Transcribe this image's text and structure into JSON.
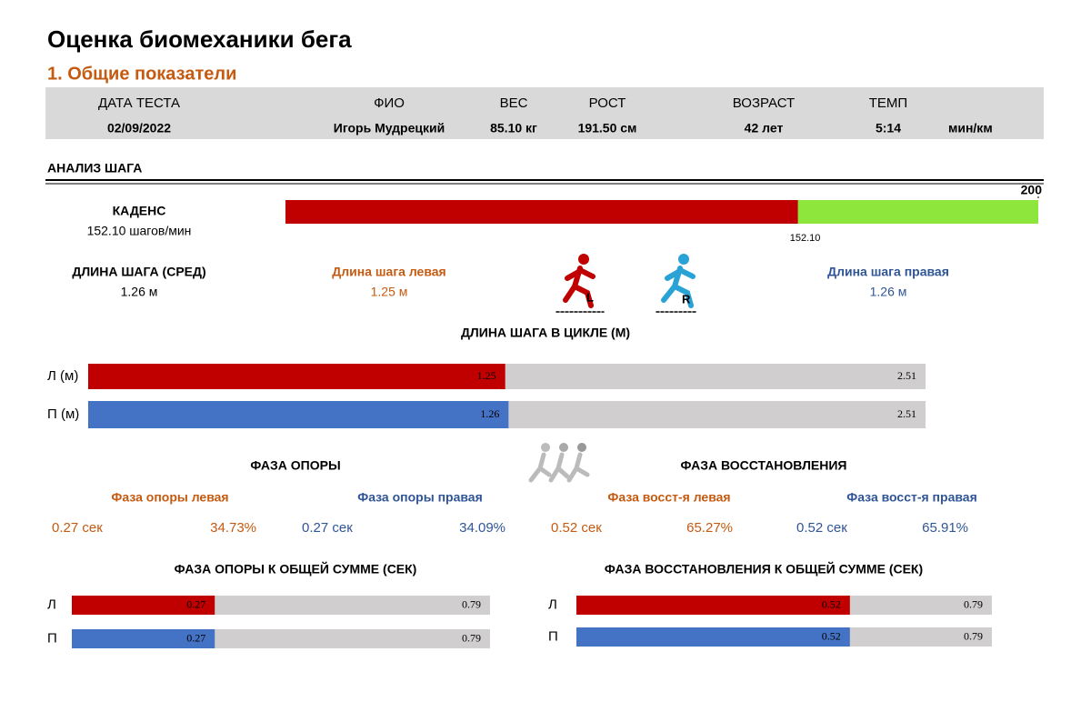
{
  "header": {
    "title": "Оценка биомеханики бега",
    "section": "1. Общие показатели"
  },
  "info": {
    "fields": [
      {
        "label": "ДАТА ТЕСТА",
        "value": "02/09/2022"
      },
      {
        "label": "ФИО",
        "value": "Игорь Мудрецкий"
      },
      {
        "label": "ВЕС",
        "value": "85.10 кг"
      },
      {
        "label": "РОСТ",
        "value": "191.50 см"
      },
      {
        "label": "ВОЗРАСТ",
        "value": "42 лет"
      },
      {
        "label": "ТЕМП",
        "value": "5:14"
      }
    ],
    "pace_unit": "мин/км"
  },
  "step_analysis": {
    "title": "АНАЛИЗ ШАГА",
    "cadence_label": "КАДЕНС",
    "cadence_text": "152.10 шагов/мин",
    "stride_avg_label": "ДЛИНА ШАГА (СРЕД)",
    "stride_avg_value": "1.26 м",
    "stride_left_label": "Длина шага левая",
    "stride_left_value": "1.25 м",
    "stride_right_label": "Длина шага правая",
    "stride_right_value": "1.26 м",
    "icons": {
      "left": "L",
      "right": "R"
    }
  },
  "phases": {
    "support": {
      "title": "ФАЗА ОПОРЫ",
      "left_label": "Фаза опоры левая",
      "left_time": "0.27 сек",
      "left_pct": "34.73%",
      "right_label": "Фаза опоры правая",
      "right_time": "0.27 сек",
      "right_pct": "34.09%"
    },
    "recovery": {
      "title": "ФАЗА ВОССТАНОВЛЕНИЯ",
      "left_label": "Фаза восст-я левая",
      "left_time": "0.52 сек",
      "left_pct": "65.27%",
      "right_label": "Фаза восст-я правая",
      "right_time": "0.52 сек",
      "right_pct": "65.91%"
    }
  },
  "chart_data": [
    {
      "type": "bar",
      "values": [
        152.1
      ],
      "value_labels": [
        "152.10"
      ],
      "xlim": [
        50,
        200
      ],
      "xticks": [
        200
      ],
      "color": "#c00000",
      "track_color": "#8ee63c"
    },
    {
      "type": "bar",
      "title": "ДЛИНА ШАГА В ЦИКЛЕ (М)",
      "categories": [
        "Л (м)",
        "П (м)"
      ],
      "values": [
        1.25,
        1.26
      ],
      "totals": [
        2.51,
        2.51
      ],
      "xlim": [
        0,
        2.51
      ],
      "colors": [
        "#c00000",
        "#4472c4"
      ],
      "total_color": "#d0cece"
    },
    {
      "type": "bar",
      "title": "ФАЗА ОПОРЫ К ОБЩЕЙ СУММЕ (СЕК)",
      "categories": [
        "Л",
        "П"
      ],
      "values": [
        0.27,
        0.27
      ],
      "totals": [
        0.79,
        0.79
      ],
      "xlim": [
        0,
        0.79
      ],
      "colors": [
        "#c00000",
        "#4472c4"
      ],
      "total_color": "#d0cece"
    },
    {
      "type": "bar",
      "title": "ФАЗА ВОССТАНОВЛЕНИЯ К ОБЩЕЙ СУММЕ (СЕК)",
      "categories": [
        "Л",
        "П"
      ],
      "values": [
        0.52,
        0.52
      ],
      "totals": [
        0.79,
        0.79
      ],
      "xlim": [
        0,
        0.79
      ],
      "colors": [
        "#c00000",
        "#4472c4"
      ],
      "total_color": "#d0cece"
    }
  ]
}
